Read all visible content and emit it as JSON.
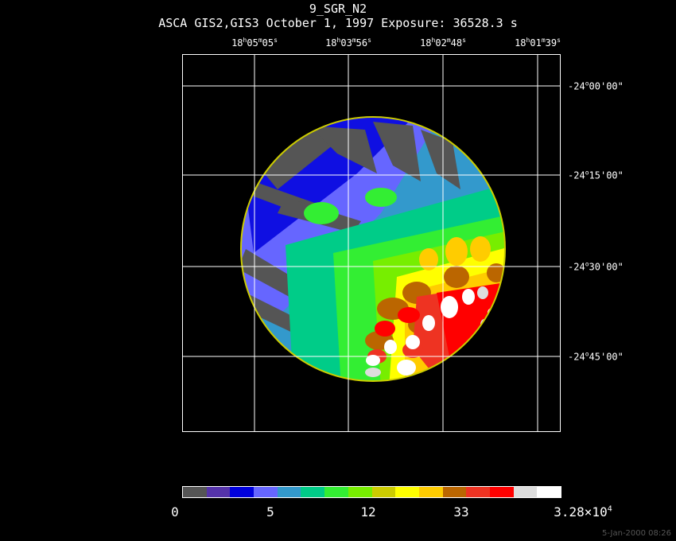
{
  "header": {
    "title": "9_SGR_N2",
    "subtitle": "ASCA GIS2,GIS3 October 1, 1997 Exposure: 36528.3 s"
  },
  "ra_labels": [
    {
      "h": "18",
      "m": "05",
      "s": "05"
    },
    {
      "h": "18",
      "m": "03",
      "s": "56"
    },
    {
      "h": "18",
      "m": "02",
      "s": "48"
    },
    {
      "h": "18",
      "m": "01",
      "s": "39"
    }
  ],
  "dec_labels": [
    {
      "deg": "-24",
      "min": "00",
      "sec": "00"
    },
    {
      "deg": "-24",
      "min": "15",
      "sec": "00"
    },
    {
      "deg": "-24",
      "min": "30",
      "sec": "00"
    },
    {
      "deg": "-24",
      "min": "45",
      "sec": "00"
    }
  ],
  "colorbar": {
    "colors": [
      "#555555",
      "#5533aa",
      "#0000dd",
      "#6666ff",
      "#3399cc",
      "#00cc88",
      "#33ee33",
      "#77ee00",
      "#cccc00",
      "#ffff00",
      "#ffcc00",
      "#bb6600",
      "#ee3322",
      "#ff0000",
      "#dddddd",
      "#ffffff"
    ],
    "labels": [
      {
        "text": "0"
      },
      {
        "text": "5"
      },
      {
        "text": "12"
      },
      {
        "text": "33"
      },
      {
        "text": "3.28×10",
        "exp": "4"
      }
    ]
  },
  "footer": {
    "timestamp": "5-Jan-2000 08:26"
  }
}
